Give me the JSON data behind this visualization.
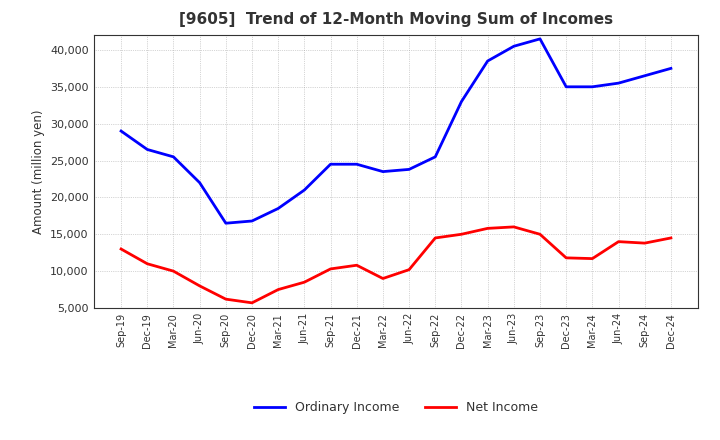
{
  "title": "[9605]  Trend of 12-Month Moving Sum of Incomes",
  "ylabel": "Amount (million yen)",
  "background_color": "#ffffff",
  "plot_bg_color": "#ffffff",
  "grid_color": "#999999",
  "title_color": "#333333",
  "x_labels": [
    "Sep-19",
    "Dec-19",
    "Mar-20",
    "Jun-20",
    "Sep-20",
    "Dec-20",
    "Mar-21",
    "Jun-21",
    "Sep-21",
    "Dec-21",
    "Mar-22",
    "Jun-22",
    "Sep-22",
    "Dec-22",
    "Mar-23",
    "Jun-23",
    "Sep-23",
    "Dec-23",
    "Mar-24",
    "Jun-24",
    "Sep-24",
    "Dec-24"
  ],
  "ordinary_income": [
    29000,
    26500,
    25500,
    22000,
    16500,
    16800,
    18500,
    21000,
    24500,
    24500,
    23500,
    23800,
    25500,
    33000,
    38500,
    40500,
    41500,
    35000,
    35000,
    35500,
    36500,
    37500
  ],
  "net_income": [
    13000,
    11000,
    10000,
    8000,
    6200,
    5700,
    7500,
    8500,
    10300,
    10800,
    9000,
    10200,
    14500,
    15000,
    15800,
    16000,
    15000,
    11800,
    11700,
    14000,
    13800,
    14500
  ],
  "ordinary_color": "#0000ff",
  "net_color": "#ff0000",
  "ylim": [
    5000,
    42000
  ],
  "yticks": [
    5000,
    10000,
    15000,
    20000,
    25000,
    30000,
    35000,
    40000
  ],
  "line_width": 2.0,
  "legend_labels": [
    "Ordinary Income",
    "Net Income"
  ]
}
